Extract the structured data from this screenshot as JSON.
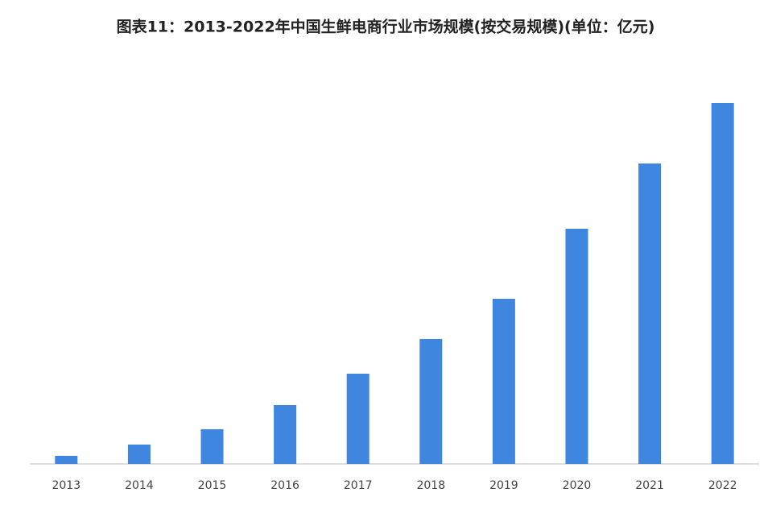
{
  "chart_data": {
    "type": "bar",
    "title": "图表11：2013-2022年中国生鲜电商行业市场规模(按交易规模)(单位：亿元)",
    "categories": [
      "2013",
      "2014",
      "2015",
      "2016",
      "2017",
      "2018",
      "2019",
      "2020",
      "2021",
      "2022"
    ],
    "values": [
      125,
      300,
      538,
      913,
      1400,
      1938,
      2563,
      3650,
      4663,
      5600
    ],
    "color": "#3e86e0",
    "ylim": [
      0,
      6000
    ]
  }
}
